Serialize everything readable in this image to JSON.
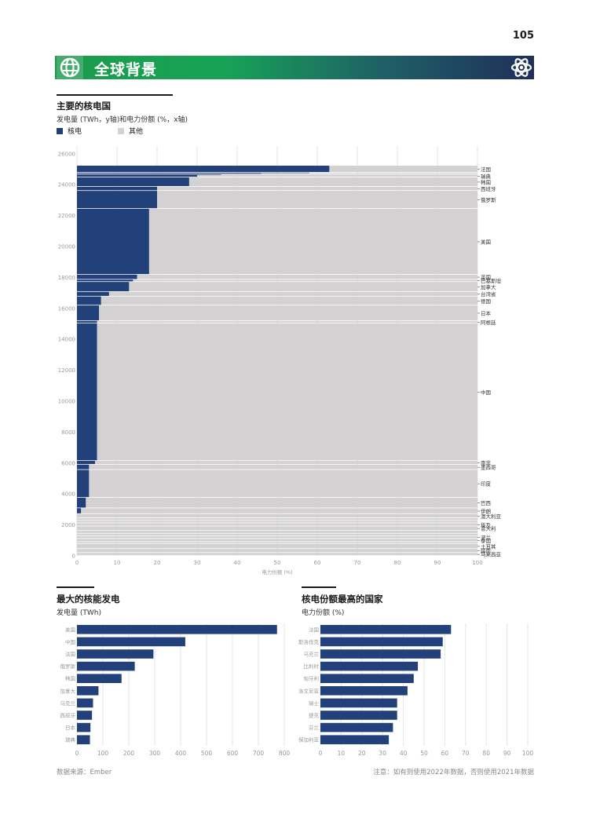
{
  "page_number": "105",
  "banner": {
    "title": "全球背景",
    "left_icon": "globe-icon",
    "right_icon": "atom-icon"
  },
  "colors": {
    "nuclear": "#22407a",
    "other": "#d3d1d1",
    "grid": "#e6e6e6",
    "banner_start": "#1c9b4b",
    "banner_end": "#1f2f5a"
  },
  "footer": {
    "source": "数据来源：Ember",
    "note": "注意：如有则使用2022年数据，否则使用2021年数据"
  },
  "charts": {
    "main": {
      "title": "主要的核电国",
      "subtitle": "发电量 (TWh，y轴)和电力份额 (%，x轴)",
      "legend": [
        {
          "label": "核电",
          "color": "#22407a"
        },
        {
          "label": "其他",
          "color": "#d3d1d1"
        }
      ],
      "xlabel": "电力份额 (%)"
    },
    "largest": {
      "title": "最大的核能发电",
      "subtitle": "发电量 (TWh)"
    },
    "highest_share": {
      "title": "核电份额最高的国家",
      "subtitle": "电力份额 (%)"
    }
  },
  "chart_data": [
    {
      "type": "bar",
      "subtype": "marimekko",
      "title": "主要的核电国",
      "subtitle": "发电量 (TWh，y轴)和电力份额 (%，x轴)",
      "xlabel": "电力份额 (%)",
      "ylabel": "",
      "xlim": [
        0,
        100
      ],
      "ylim": [
        0,
        26500
      ],
      "xticks": [
        0,
        10,
        20,
        30,
        40,
        50,
        60,
        70,
        80,
        90,
        100
      ],
      "yticks": [
        0,
        2000,
        4000,
        6000,
        8000,
        10000,
        12000,
        14000,
        16000,
        18000,
        20000,
        22000,
        24000,
        26000
      ],
      "series_names": [
        "核电",
        "其他"
      ],
      "segments": [
        {
          "label": "法国",
          "generation": 450,
          "nuclear_share": 63
        },
        {
          "label": "",
          "generation": 40,
          "nuclear_share": 58
        },
        {
          "label": "",
          "generation": 70,
          "nuclear_share": 46
        },
        {
          "label": "",
          "generation": 30,
          "nuclear_share": 36
        },
        {
          "label": "瑞典",
          "generation": 170,
          "nuclear_share": 30
        },
        {
          "label": "韩国",
          "generation": 600,
          "nuclear_share": 28
        },
        {
          "label": "西班牙",
          "generation": 270,
          "nuclear_share": 20
        },
        {
          "label": "俄罗斯",
          "generation": 1160,
          "nuclear_share": 20
        },
        {
          "label": "美国",
          "generation": 4260,
          "nuclear_share": 18
        },
        {
          "label": "英国",
          "generation": 320,
          "nuclear_share": 15
        },
        {
          "label": "巴基斯坦",
          "generation": 150,
          "nuclear_share": 14
        },
        {
          "label": "加拿大",
          "generation": 640,
          "nuclear_share": 13
        },
        {
          "label": "台湾省",
          "generation": 300,
          "nuclear_share": 8
        },
        {
          "label": "德国",
          "generation": 580,
          "nuclear_share": 6
        },
        {
          "label": "日本",
          "generation": 1000,
          "nuclear_share": 5.5
        },
        {
          "label": "阿根廷",
          "generation": 150,
          "nuclear_share": 5
        },
        {
          "label": "中国",
          "generation": 8900,
          "nuclear_share": 5
        },
        {
          "label": "南非",
          "generation": 240,
          "nuclear_share": 4.5
        },
        {
          "label": "墨西哥",
          "generation": 340,
          "nuclear_share": 3
        },
        {
          "label": "印度",
          "generation": 1800,
          "nuclear_share": 3
        },
        {
          "label": "巴西",
          "generation": 680,
          "nuclear_share": 2.2
        },
        {
          "label": "伊朗",
          "generation": 370,
          "nuclear_share": 1
        },
        {
          "label": "澳大利亚",
          "generation": 270,
          "nuclear_share": 0
        },
        {
          "label": "",
          "generation": 170,
          "nuclear_share": 0
        },
        {
          "label": "",
          "generation": 160,
          "nuclear_share": 0
        },
        {
          "label": "埃及",
          "generation": 200,
          "nuclear_share": 0
        },
        {
          "label": "意大利",
          "generation": 290,
          "nuclear_share": 0
        },
        {
          "label": "",
          "generation": 180,
          "nuclear_share": 0
        },
        {
          "label": "",
          "generation": 160,
          "nuclear_share": 0
        },
        {
          "label": "波兰",
          "generation": 180,
          "nuclear_share": 0
        },
        {
          "label": "泰国",
          "generation": 200,
          "nuclear_share": 0
        },
        {
          "label": "",
          "generation": 120,
          "nuclear_share": 0
        },
        {
          "label": "土耳其",
          "generation": 330,
          "nuclear_share": 0
        },
        {
          "label": "越南",
          "generation": 260,
          "nuclear_share": 0
        },
        {
          "label": "马来西亚",
          "generation": 190,
          "nuclear_share": 0
        }
      ]
    },
    {
      "type": "bar",
      "orientation": "horizontal",
      "title": "最大的核能发电",
      "subtitle": "发电量 (TWh)",
      "xlabel": "",
      "ylabel": "",
      "xlim": [
        0,
        800
      ],
      "xticks": [
        0,
        100,
        200,
        300,
        400,
        500,
        600,
        700,
        800
      ],
      "categories": [
        "美国",
        "中国",
        "法国",
        "俄罗斯",
        "韩国",
        "加拿大",
        "乌克兰",
        "西班牙",
        "日本",
        "瑞典"
      ],
      "values": [
        772,
        418,
        295,
        223,
        172,
        83,
        62,
        58,
        52,
        50
      ]
    },
    {
      "type": "bar",
      "orientation": "horizontal",
      "title": "核电份额最高的国家",
      "subtitle": "电力份额 (%)",
      "xlabel": "",
      "ylabel": "",
      "xlim": [
        0,
        100
      ],
      "xticks": [
        0,
        10,
        20,
        30,
        40,
        50,
        60,
        70,
        80,
        90,
        100
      ],
      "categories": [
        "法国",
        "斯洛伐克",
        "乌克兰",
        "比利时",
        "匈牙利",
        "斯洛文尼亚",
        "瑞士",
        "捷克",
        "芬兰",
        "保加利亚"
      ],
      "values": [
        63,
        59,
        58,
        47,
        45,
        42,
        37,
        37,
        35,
        33
      ]
    }
  ]
}
